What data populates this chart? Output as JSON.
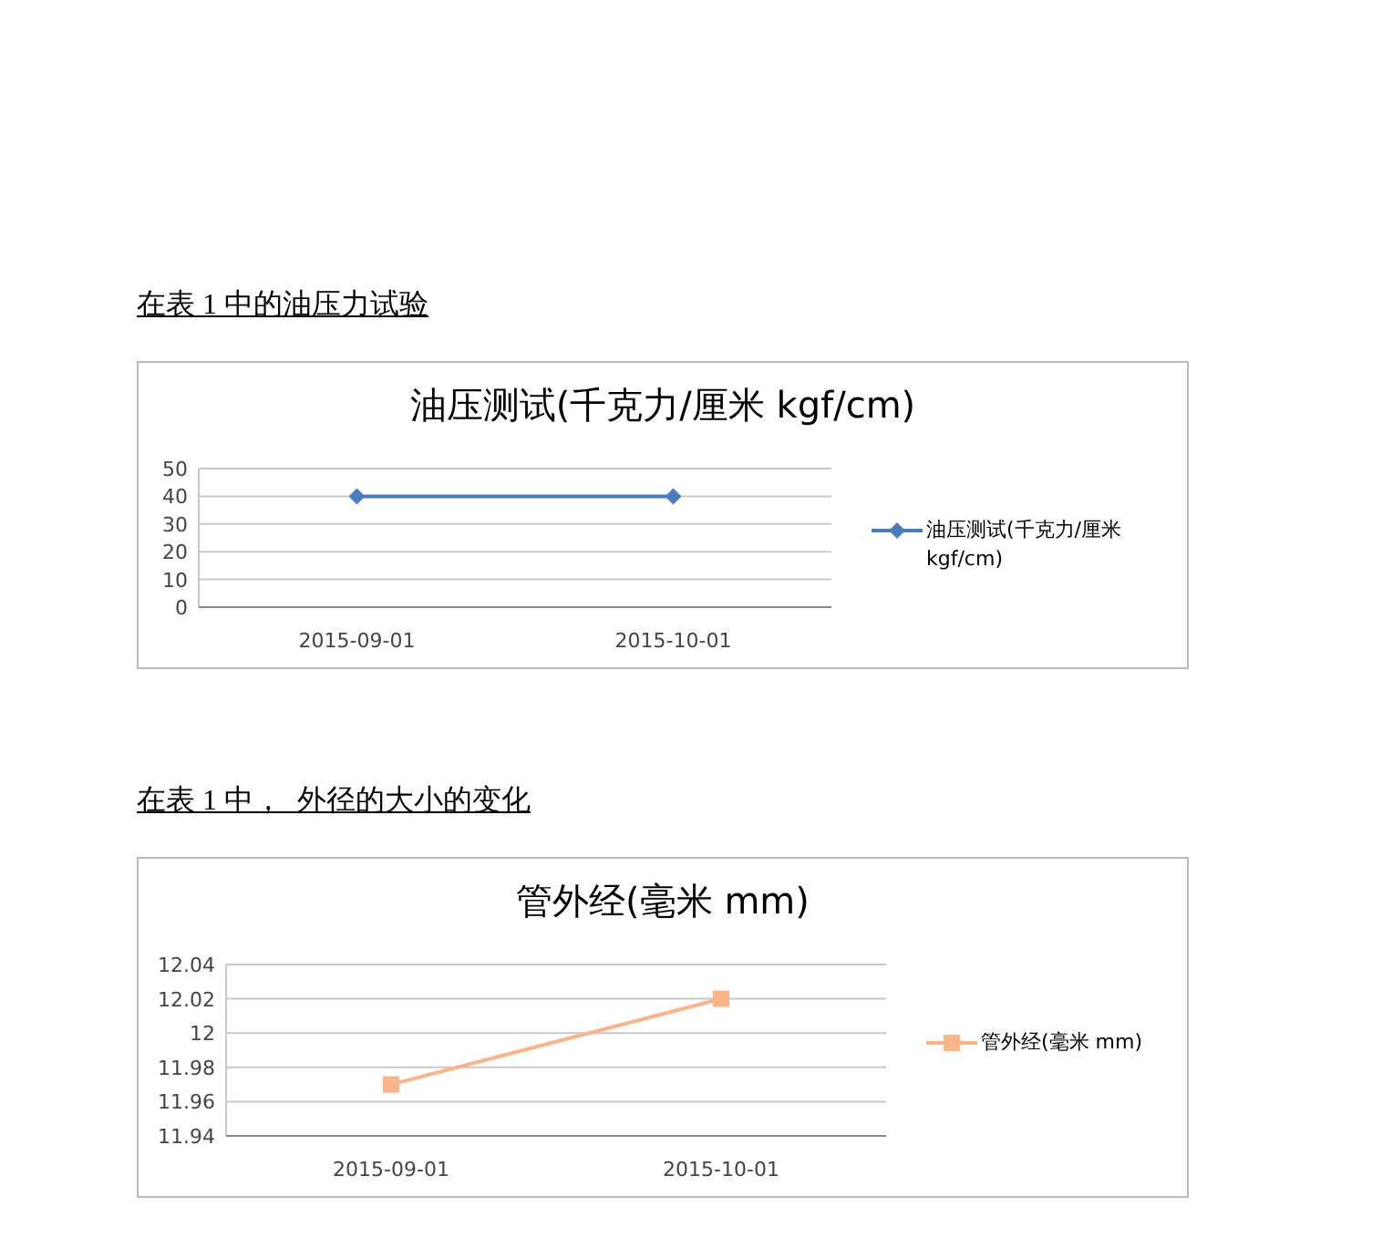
{
  "chart_data": [
    {
      "type": "line",
      "title": "油压测试(千克力/厘米 kgf/cm)",
      "annotations": [
        "在表 1 中的油压力试验"
      ],
      "categories": [
        "2015-09-01",
        "2015-10-01"
      ],
      "series": [
        {
          "name": "油压测试(千克力/厘米 kgf/cm)",
          "color": "#4a7ebb",
          "values": [
            40,
            40
          ]
        }
      ],
      "ylim": [
        0,
        50
      ],
      "yticks": [
        0,
        10,
        20,
        30,
        40,
        50
      ],
      "grid": "y",
      "legend": "right",
      "marker": "diamond"
    },
    {
      "type": "line",
      "title": "管外经(毫米 mm)",
      "annotations": [
        "在表 1 中，  外径的大小的变化"
      ],
      "categories": [
        "2015-09-01",
        "2015-10-01"
      ],
      "series": [
        {
          "name": "管外经(毫米 mm)",
          "color": "#f9b48a",
          "values": [
            11.97,
            12.02
          ]
        }
      ],
      "ylim": [
        11.94,
        12.04
      ],
      "yticks": [
        11.94,
        11.96,
        11.98,
        12,
        12.02,
        12.04
      ],
      "grid": "y",
      "legend": "right",
      "marker": "square"
    }
  ]
}
